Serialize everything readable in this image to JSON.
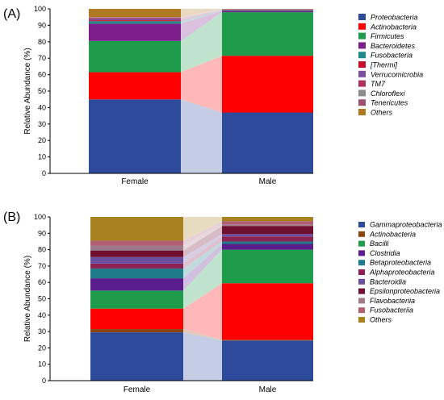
{
  "panels_labels": [
    "(A)",
    "(B)"
  ],
  "chart_data": [
    {
      "type": "bar",
      "stacked": true,
      "panel_label": "(A)",
      "ylabel": "Relative Abundance (%)",
      "ylim": [
        0,
        100
      ],
      "yticks": [
        0,
        10,
        20,
        30,
        40,
        50,
        60,
        70,
        80,
        90,
        100
      ],
      "grid": false,
      "legend_position": "right",
      "categories": [
        "Female",
        "Male"
      ],
      "series": [
        {
          "name": "Proteobacteria",
          "color": "#2E4B9B",
          "values": [
            45,
            37
          ]
        },
        {
          "name": "Actinobacteria",
          "color": "#FF0000",
          "values": [
            16.5,
            34.5
          ]
        },
        {
          "name": "Firmicutes",
          "color": "#1E9B4B",
          "values": [
            19,
            26.5
          ]
        },
        {
          "name": "Bacteroidetes",
          "color": "#7D1E8C",
          "values": [
            10.5,
            0.8
          ]
        },
        {
          "name": "Fusobacteria",
          "color": "#1F8A8A",
          "values": [
            1.5,
            0.4
          ]
        },
        {
          "name": "[Thermi]",
          "color": "#C8102E",
          "values": [
            0.6,
            0.2
          ]
        },
        {
          "name": "Verrucomicrobia",
          "color": "#7A4FA0",
          "values": [
            0.8,
            0.1
          ]
        },
        {
          "name": "TM7",
          "color": "#B03060",
          "values": [
            0.5,
            0.2
          ]
        },
        {
          "name": "Chloroflexi",
          "color": "#8C8C8C",
          "values": [
            0.3,
            0.1
          ]
        },
        {
          "name": "Tenericutes",
          "color": "#A05070",
          "values": [
            0.3,
            0.1
          ]
        },
        {
          "name": "Others",
          "color": "#B07820",
          "values": [
            5.0,
            0.1
          ]
        }
      ]
    },
    {
      "type": "bar",
      "stacked": true,
      "panel_label": "(B)",
      "ylabel": "Relative Abundance (%)",
      "ylim": [
        0,
        100
      ],
      "yticks": [
        0,
        10,
        20,
        30,
        40,
        50,
        60,
        70,
        80,
        90,
        100
      ],
      "grid": false,
      "legend_position": "right",
      "categories": [
        "Female",
        "Male"
      ],
      "series": [
        {
          "name": "Gammaproteobacteria",
          "color": "#2E4B9B",
          "values": [
            29.5,
            24.5
          ]
        },
        {
          "name": "Actinobacteria",
          "color": "#8B4513",
          "values": [
            2,
            0.5
          ]
        },
        {
          "name": "",
          "color": "#FF0000",
          "values": [
            12.5,
            34.5
          ]
        },
        {
          "name": "Bacilli",
          "color": "#1E9B4B",
          "values": [
            11,
            20.5
          ]
        },
        {
          "name": "Clostridia",
          "color": "#5A1E8C",
          "values": [
            7.5,
            3.5
          ]
        },
        {
          "name": "Betaproteobacteria",
          "color": "#1F7A8A",
          "values": [
            6,
            1.5
          ]
        },
        {
          "name": "Alphaproteobacteria",
          "color": "#8B2252",
          "values": [
            3,
            3
          ]
        },
        {
          "name": "Bacteroidia",
          "color": "#6A4FA0",
          "values": [
            4,
            1.5
          ]
        },
        {
          "name": "Epsilonproteobacteria",
          "color": "#701030",
          "values": [
            4,
            5
          ]
        },
        {
          "name": "Flavobacteriia",
          "color": "#9E7A8A",
          "values": [
            3,
            1
          ]
        },
        {
          "name": "Fusobacteriia",
          "color": "#B06070",
          "values": [
            3,
            2
          ]
        },
        {
          "name": "Others",
          "color": "#A8821E",
          "values": [
            14.5,
            2.5
          ]
        }
      ]
    }
  ]
}
